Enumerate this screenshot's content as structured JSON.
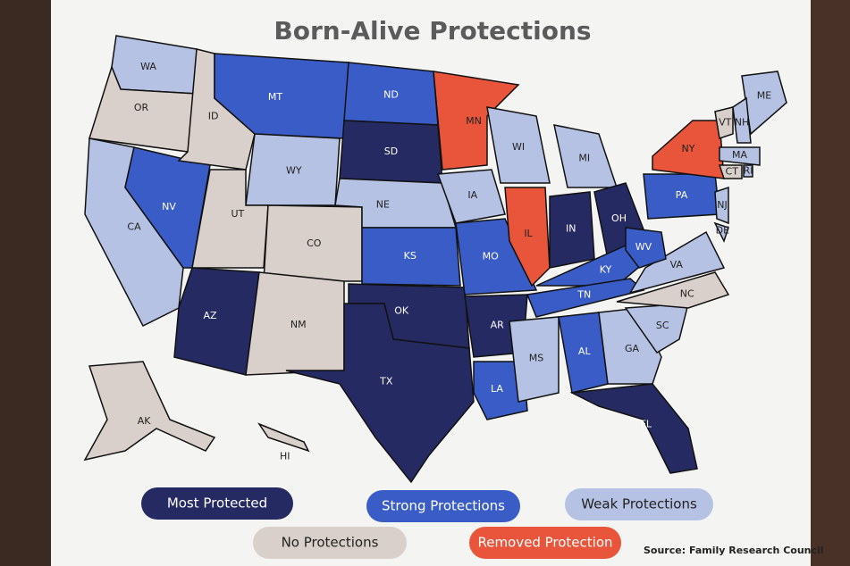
{
  "title": "Born-Alive Protections",
  "legend": [
    {
      "label": "Most Protected",
      "color": "#262a62"
    },
    {
      "label": "Strong Protections",
      "color": "#3a5cc6"
    },
    {
      "label": "Weak Protections",
      "color": "#b6c2e4"
    },
    {
      "label": "No Protections",
      "color": "#d9d0cb"
    },
    {
      "label": "Removed Protection",
      "color": "#e9553b"
    }
  ],
  "states": [
    {
      "abbr": "WA",
      "category": 2
    },
    {
      "abbr": "OR",
      "category": 3
    },
    {
      "abbr": "CA",
      "category": 2
    },
    {
      "abbr": "NV",
      "category": 1
    },
    {
      "abbr": "ID",
      "category": 3
    },
    {
      "abbr": "MT",
      "category": 1
    },
    {
      "abbr": "WY",
      "category": 2
    },
    {
      "abbr": "UT",
      "category": 3
    },
    {
      "abbr": "CO",
      "category": 3
    },
    {
      "abbr": "AZ",
      "category": 0
    },
    {
      "abbr": "NM",
      "category": 3
    },
    {
      "abbr": "ND",
      "category": 1
    },
    {
      "abbr": "SD",
      "category": 0
    },
    {
      "abbr": "NE",
      "category": 2
    },
    {
      "abbr": "KS",
      "category": 1
    },
    {
      "abbr": "OK",
      "category": 0
    },
    {
      "abbr": "TX",
      "category": 0
    },
    {
      "abbr": "MN",
      "category": 4
    },
    {
      "abbr": "IA",
      "category": 2
    },
    {
      "abbr": "MO",
      "category": 1
    },
    {
      "abbr": "AR",
      "category": 0
    },
    {
      "abbr": "LA",
      "category": 1
    },
    {
      "abbr": "WI",
      "category": 2
    },
    {
      "abbr": "IL",
      "category": 4
    },
    {
      "abbr": "MI",
      "category": 2
    },
    {
      "abbr": "IN",
      "category": 0
    },
    {
      "abbr": "OH",
      "category": 0
    },
    {
      "abbr": "KY",
      "category": 1
    },
    {
      "abbr": "TN",
      "category": 1
    },
    {
      "abbr": "MS",
      "category": 2
    },
    {
      "abbr": "AL",
      "category": 1
    },
    {
      "abbr": "GA",
      "category": 2
    },
    {
      "abbr": "FL",
      "category": 0
    },
    {
      "abbr": "SC",
      "category": 2
    },
    {
      "abbr": "NC",
      "category": 3
    },
    {
      "abbr": "VA",
      "category": 2
    },
    {
      "abbr": "WV",
      "category": 1
    },
    {
      "abbr": "PA",
      "category": 1
    },
    {
      "abbr": "NY",
      "category": 4
    },
    {
      "abbr": "NJ",
      "category": 2
    },
    {
      "abbr": "DE",
      "category": 2
    },
    {
      "abbr": "ME",
      "category": 2
    },
    {
      "abbr": "VT",
      "category": 3
    },
    {
      "abbr": "NH",
      "category": 2
    },
    {
      "abbr": "MA",
      "category": 2
    },
    {
      "abbr": "CT",
      "category": 3
    },
    {
      "abbr": "RI",
      "category": 2
    },
    {
      "abbr": "AK",
      "category": 3
    },
    {
      "abbr": "HI",
      "category": 3
    }
  ],
  "source": "Source: Family Research Council"
}
